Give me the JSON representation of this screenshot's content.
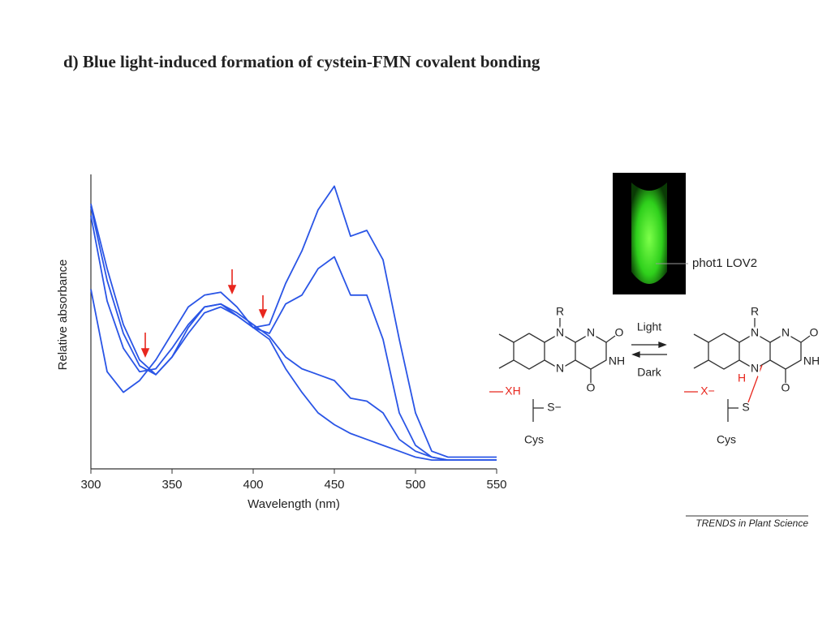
{
  "chart_data": {
    "type": "line",
    "title": "d) Blue light-induced formation of cystein-FMN covalent bonding",
    "xlabel": "Wavelength (nm)",
    "ylabel": "Relative absorbance",
    "x": [
      300,
      310,
      320,
      330,
      340,
      350,
      360,
      370,
      380,
      390,
      400,
      410,
      420,
      430,
      440,
      450,
      460,
      470,
      480,
      490,
      500,
      510,
      520,
      530,
      540,
      550
    ],
    "series": [
      {
        "color": "#2a55e6",
        "values": [
          0.9,
          0.68,
          0.49,
          0.37,
          0.32,
          0.38,
          0.46,
          0.53,
          0.55,
          0.52,
          0.48,
          0.49,
          0.63,
          0.74,
          0.88,
          0.96,
          0.79,
          0.81,
          0.71,
          0.44,
          0.19,
          0.06,
          0.04,
          0.04,
          0.04,
          0.04
        ]
      },
      {
        "color": "#2a55e6",
        "values": [
          0.89,
          0.64,
          0.46,
          0.35,
          0.32,
          0.38,
          0.48,
          0.55,
          0.56,
          0.52,
          0.48,
          0.46,
          0.56,
          0.59,
          0.68,
          0.72,
          0.59,
          0.59,
          0.44,
          0.19,
          0.08,
          0.04,
          0.03,
          0.03,
          0.03,
          0.03
        ]
      },
      {
        "color": "#2a55e6",
        "values": [
          0.86,
          0.57,
          0.41,
          0.33,
          0.34,
          0.41,
          0.49,
          0.55,
          0.56,
          0.53,
          0.49,
          0.45,
          0.38,
          0.34,
          0.32,
          0.3,
          0.24,
          0.23,
          0.19,
          0.1,
          0.06,
          0.04,
          0.03,
          0.03,
          0.03,
          0.03
        ]
      },
      {
        "color": "#2a55e6",
        "values": [
          0.61,
          0.33,
          0.26,
          0.3,
          0.37,
          0.46,
          0.55,
          0.59,
          0.6,
          0.55,
          0.48,
          0.44,
          0.34,
          0.26,
          0.19,
          0.15,
          0.12,
          0.1,
          0.08,
          0.06,
          0.04,
          0.03,
          0.03,
          0.03,
          0.03,
          0.03
        ]
      }
    ],
    "xlim": [
      300,
      550
    ],
    "xticks": [
      300,
      350,
      400,
      450,
      500,
      550
    ],
    "ylim": [
      0,
      1
    ]
  },
  "diagram": {
    "photo_label": "phot1 LOV2",
    "light": "Light",
    "dark": "Dark",
    "left": [
      "R",
      "N",
      "N",
      "O",
      "NH",
      "N",
      "O",
      "XH",
      "S−",
      "Cys"
    ],
    "right": [
      "R",
      "N",
      "N",
      "O",
      "NH",
      "N",
      "O",
      "H",
      "X−",
      "S",
      "Cys"
    ],
    "credit": "TRENDS in Plant Science"
  }
}
